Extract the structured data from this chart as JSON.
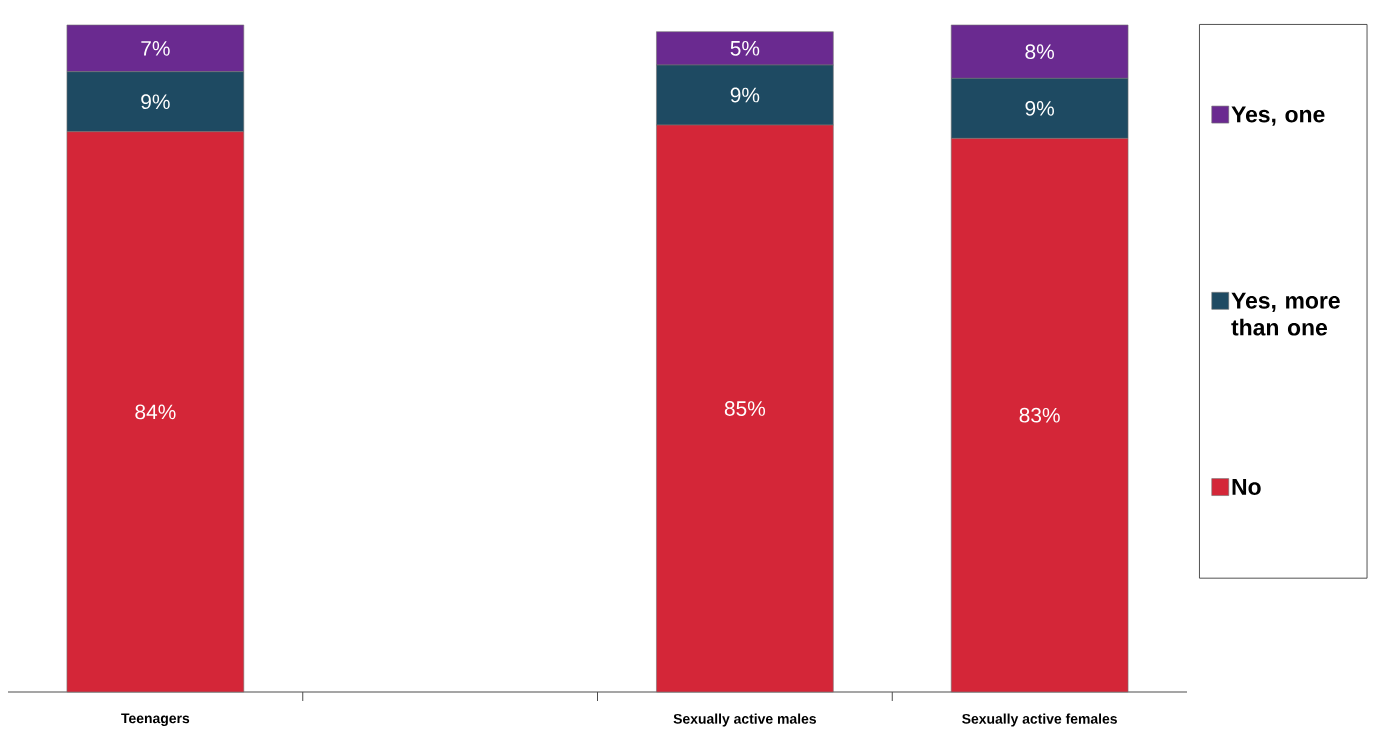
{
  "chart_data": {
    "type": "bar",
    "stacked": true,
    "categories": [
      "Teenagers",
      null,
      "Sexually active males",
      "Sexually active females"
    ],
    "series": [
      {
        "name": "No",
        "color": "#d42638",
        "values": [
          84,
          null,
          85,
          83
        ],
        "value_labels": [
          "84%",
          null,
          "85%",
          "83%"
        ]
      },
      {
        "name": "Yes, more than one",
        "color": "#1e4a62",
        "values": [
          9,
          null,
          9,
          9
        ],
        "value_labels": [
          "9%",
          null,
          "9%",
          "9%"
        ]
      },
      {
        "name": "Yes, one",
        "color": "#6a2a90",
        "values": [
          7,
          null,
          5,
          8
        ],
        "value_labels": [
          "7%",
          null,
          "5%",
          "8%"
        ]
      }
    ],
    "ylim": [
      0,
      100
    ],
    "legend": "right",
    "tick_labels": "x"
  }
}
